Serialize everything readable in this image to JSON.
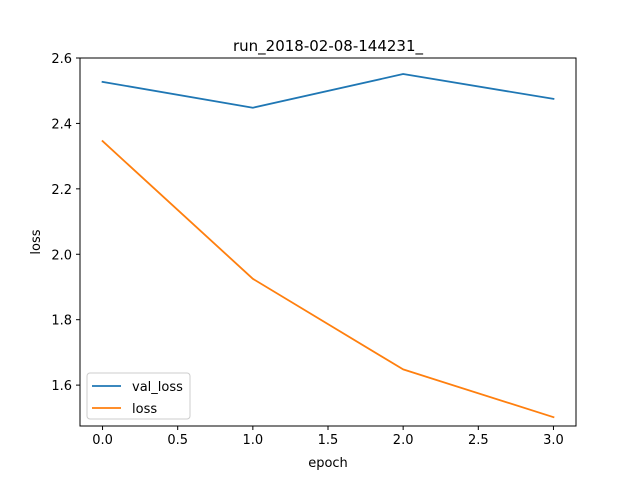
{
  "chart_data": {
    "type": "line",
    "title": "run_2018-02-08-144231_",
    "xlabel": "epoch",
    "ylabel": "loss",
    "x": [
      0,
      1,
      2,
      3
    ],
    "series": [
      {
        "name": "val_loss",
        "color": "#1f77b4",
        "values": [
          2.527,
          2.448,
          2.551,
          2.475
        ]
      },
      {
        "name": "loss",
        "color": "#ff7f0e",
        "values": [
          2.346,
          1.925,
          1.648,
          1.502
        ]
      }
    ],
    "xlim": [
      -0.15,
      3.15
    ],
    "ylim": [
      1.475,
      2.6
    ],
    "xticks": [
      0.0,
      0.5,
      1.0,
      1.5,
      2.0,
      2.5,
      3.0
    ],
    "xtick_labels": [
      "0.0",
      "0.5",
      "1.0",
      "1.5",
      "2.0",
      "2.5",
      "3.0"
    ],
    "yticks": [
      1.6,
      1.8,
      2.0,
      2.2,
      2.4,
      2.6
    ],
    "ytick_labels": [
      "1.6",
      "1.8",
      "2.0",
      "2.2",
      "2.4",
      "2.6"
    ],
    "grid": false,
    "legend_position": "lower-left"
  }
}
